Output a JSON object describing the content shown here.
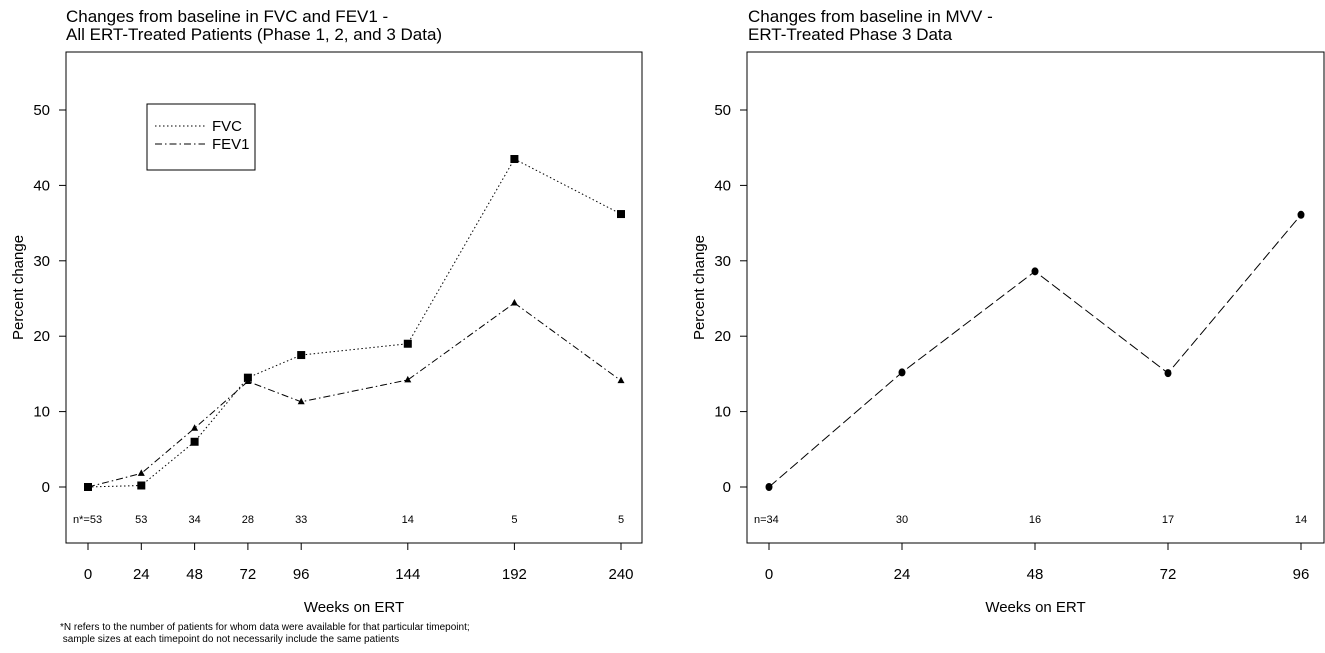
{
  "footnote": {
    "line1": "*N refers to the number of patients for whom data were available for that particular timepoint;",
    "line2": " sample sizes at each timepoint do not necessarily include the same patients"
  },
  "chart_data": [
    {
      "type": "line",
      "title": "Changes from baseline in FVC and FEV1 -",
      "subtitle": "All ERT-Treated Patients (Phase 1, 2, and 3 Data)",
      "xlabel": "Weeks on ERT",
      "ylabel": "Percent change",
      "x": [
        0,
        24,
        48,
        72,
        96,
        144,
        192,
        240
      ],
      "xticks": [
        "0",
        "24",
        "48",
        "72",
        "96",
        "144",
        "192",
        "240"
      ],
      "ylim": [
        -7,
        57
      ],
      "yticks": [
        0,
        10,
        20,
        30,
        40,
        50
      ],
      "n_labels": [
        "n*=53",
        "53",
        "34",
        "28",
        "33",
        "14",
        "5",
        "5"
      ],
      "legend_position": "top-left",
      "series": [
        {
          "name": "FVC",
          "values": [
            0,
            0.2,
            6,
            14.5,
            17.5,
            19,
            43.5,
            36.2
          ],
          "style": "dotted",
          "marker": "square"
        },
        {
          "name": "FEV1",
          "values": [
            0,
            1.8,
            7.8,
            14,
            11.3,
            14.2,
            24.4,
            14.1
          ],
          "style": "dashdot",
          "marker": "triangle"
        }
      ],
      "grid": false
    },
    {
      "type": "line",
      "title": "Changes from baseline in MVV -",
      "subtitle": "ERT-Treated Phase 3 Data",
      "xlabel": "Weeks on ERT",
      "ylabel": "Percent change",
      "x": [
        0,
        24,
        48,
        72,
        96
      ],
      "xticks": [
        "0",
        "24",
        "48",
        "72",
        "96"
      ],
      "ylim": [
        -7,
        57
      ],
      "yticks": [
        0,
        10,
        20,
        30,
        40,
        50
      ],
      "n_labels": [
        "n=34",
        "30",
        "16",
        "17",
        "14"
      ],
      "series": [
        {
          "values": [
            0,
            15.2,
            28.6,
            15.1,
            36.1
          ],
          "style": "dashed",
          "marker": "circle"
        }
      ],
      "grid": false
    }
  ]
}
